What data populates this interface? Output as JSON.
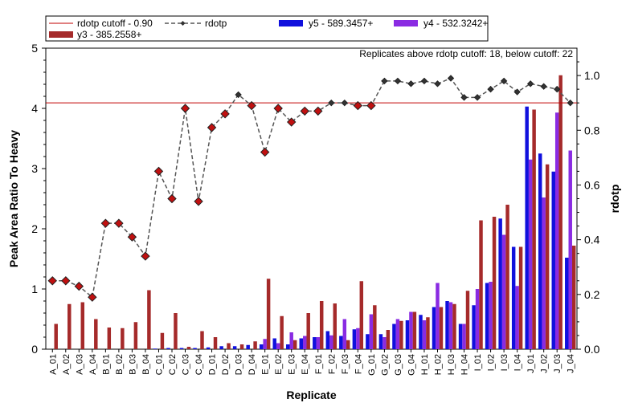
{
  "chart_data": {
    "type": "bar",
    "xlabel": "Replicate",
    "ylabel": "Peak Area Ratio To Heavy",
    "y2label": "rdotp",
    "ylim": [
      0,
      5
    ],
    "y2lim": [
      0,
      1.1
    ],
    "yticks": [
      "0",
      "1",
      "2",
      "3",
      "4",
      "5"
    ],
    "y2ticks": [
      "0.0",
      "0.2",
      "0.4",
      "0.6",
      "0.8",
      "1.0"
    ],
    "annotation": "Replicates above rdotp cutoff: 18, below cutoff: 22",
    "cutoff": {
      "name": "rdotp cutoff - 0.90",
      "value": 0.9,
      "color": "#c00000"
    },
    "categories": [
      "A_01",
      "A_02",
      "A_03",
      "A_04",
      "B_01",
      "B_02",
      "B_03",
      "B_04",
      "C_01",
      "C_02",
      "C_03",
      "C_04",
      "D_01",
      "D_02",
      "D_03",
      "D_04",
      "E_01",
      "E_02",
      "E_03",
      "E_04",
      "F_01",
      "F_02",
      "F_03",
      "F_04",
      "G_01",
      "G_02",
      "G_03",
      "G_04",
      "H_01",
      "H_02",
      "H_03",
      "H_04",
      "I_01",
      "I_02",
      "I_03",
      "I_04",
      "J_01",
      "J_02",
      "J_03",
      "J_04"
    ],
    "series": [
      {
        "name": "y5 - 589.3457+",
        "color": "#1010dd",
        "values": [
          0,
          0,
          0,
          0,
          0,
          0,
          0,
          0,
          0.01,
          0.02,
          0.02,
          0.02,
          0.03,
          0.05,
          0.05,
          0.07,
          0.08,
          0.18,
          0.08,
          0.18,
          0.2,
          0.3,
          0.22,
          0.33,
          0.25,
          0.25,
          0.42,
          0.48,
          0.57,
          0.7,
          0.8,
          0.42,
          0.73,
          1.1,
          2.17,
          1.7,
          4.03,
          3.25,
          2.95,
          1.52
        ]
      },
      {
        "name": "y4 - 532.3242+",
        "color": "#8a2be2",
        "values": [
          0,
          0,
          0,
          0,
          0,
          0,
          0,
          0,
          0,
          0,
          0,
          0,
          0,
          0,
          0,
          0,
          0.17,
          0.1,
          0.28,
          0.22,
          0.2,
          0.23,
          0.5,
          0.35,
          0.58,
          0.2,
          0.5,
          0.62,
          0.48,
          1.1,
          0.78,
          0.42,
          1.0,
          1.12,
          1.9,
          1.05,
          3.15,
          2.52,
          3.93,
          3.3
        ]
      },
      {
        "name": "y3 - 385.2558+",
        "color": "#a52a2a",
        "values": [
          0.42,
          0.75,
          0.78,
          0.5,
          0.36,
          0.35,
          0.45,
          0.98,
          0.27,
          0.6,
          0.04,
          0.3,
          0.2,
          0.1,
          0.08,
          0.13,
          1.17,
          0.55,
          0.15,
          0.6,
          0.8,
          0.76,
          0.15,
          1.13,
          0.73,
          0.32,
          0.47,
          0.62,
          0.53,
          0.7,
          0.75,
          0.97,
          2.14,
          2.2,
          2.4,
          1.7,
          3.98,
          3.07,
          4.55,
          1.72
        ]
      }
    ],
    "line": {
      "name": "rdotp",
      "marker_color": "#c01010",
      "values": [
        0.25,
        0.25,
        0.23,
        0.19,
        0.46,
        0.46,
        0.41,
        0.34,
        0.65,
        0.55,
        0.88,
        0.54,
        0.81,
        0.86,
        0.93,
        0.89,
        0.72,
        0.88,
        0.83,
        0.87,
        0.87,
        0.9,
        0.9,
        0.89,
        0.89,
        0.98,
        0.98,
        0.97,
        0.98,
        0.97,
        0.99,
        0.92,
        0.92,
        0.95,
        0.98,
        0.94,
        0.97,
        0.96,
        0.95,
        0.9
      ]
    },
    "legend": [
      {
        "label": "rdotp cutoff - 0.90",
        "kind": "cutoff"
      },
      {
        "label": "rdotp",
        "kind": "line"
      },
      {
        "label": "y5 - 589.3457+",
        "kind": "bar",
        "color": "#1010dd"
      },
      {
        "label": "y4 - 532.3242+",
        "kind": "bar",
        "color": "#8a2be2"
      },
      {
        "label": "y3 - 385.2558+",
        "kind": "bar",
        "color": "#a52a2a"
      }
    ]
  }
}
